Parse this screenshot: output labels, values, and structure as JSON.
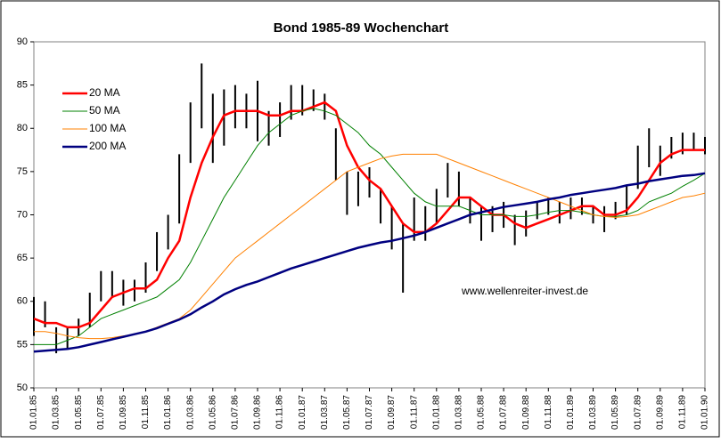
{
  "chart_data": {
    "type": "line",
    "title": "Bond 1985-89 Wochenchart",
    "annotation": "www.wellenreiter-invest.de",
    "categories": [
      "01.01.85",
      null,
      "01.03.85",
      null,
      "01.05.85",
      null,
      "01.07.85",
      null,
      "01.09.85",
      null,
      "01.11.85",
      null,
      "01.01.86",
      null,
      "01.03.86",
      null,
      "01.05.86",
      null,
      "01.07.86",
      null,
      "01.09.86",
      null,
      "01.11.86",
      null,
      "01.01.87",
      null,
      "01.03.87",
      null,
      "01.05.87",
      null,
      "01.07.87",
      null,
      "01.09.87",
      null,
      "01.11.87",
      null,
      "01.01.88",
      null,
      "01.03.88",
      null,
      "01.05.88",
      null,
      "01.07.88",
      null,
      "01.09.88",
      null,
      "01.11.88",
      null,
      "01.01.89",
      null,
      "01.03.89",
      null,
      "01.05.89",
      null,
      "01.07.89",
      null,
      "01.09.89",
      null,
      "01.11.89",
      null,
      "01.01.90"
    ],
    "high": [
      60.5,
      60,
      57,
      57,
      58,
      61,
      63.5,
      63.5,
      62.5,
      62.5,
      64.5,
      68,
      70,
      77,
      83,
      87.5,
      84,
      84.5,
      85,
      84,
      85.5,
      82,
      83,
      85,
      85,
      84.5,
      84,
      80,
      75,
      75,
      75.5,
      73,
      71,
      69,
      72,
      71,
      73,
      76,
      75,
      72,
      71,
      71,
      71.5,
      70,
      70.5,
      71.5,
      72,
      71.5,
      72,
      72,
      71,
      71,
      71.5,
      73.5,
      78,
      80,
      78,
      79,
      79.5,
      79.5,
      79
    ],
    "low": [
      56,
      57,
      54,
      54.5,
      56,
      57,
      60,
      60.5,
      59.5,
      60,
      61,
      63.5,
      66,
      69,
      76,
      80,
      76,
      78,
      80,
      80,
      78.5,
      78,
      79,
      81,
      81.5,
      82,
      81,
      74,
      70,
      71,
      72,
      69,
      66,
      61,
      67,
      67,
      69,
      72,
      71,
      69,
      67,
      68,
      68.5,
      66.5,
      67.5,
      69.5,
      70,
      69,
      69.5,
      70,
      69,
      68,
      69.5,
      70,
      73,
      75.5,
      74.5,
      76.5,
      77,
      77.5,
      77
    ],
    "price_color": "#000000",
    "series": [
      {
        "name": "20 MA",
        "color": "#ff0000",
        "width": 2.5,
        "values": [
          58,
          57.5,
          57.5,
          57,
          57,
          57.5,
          59,
          60.5,
          61,
          61.5,
          61.5,
          62.5,
          65,
          67,
          72,
          76,
          79,
          81.5,
          82,
          82,
          82,
          81.5,
          81.5,
          82,
          82,
          82.5,
          83,
          82,
          78,
          75.5,
          74,
          73,
          71,
          69,
          68,
          68,
          69,
          70.5,
          72,
          72,
          71,
          70,
          70,
          69,
          68.5,
          69,
          69.5,
          70,
          70.5,
          71,
          71,
          70,
          70,
          70.5,
          72,
          74,
          76,
          77,
          77.5,
          77.5,
          77.5
        ]
      },
      {
        "name": "50 MA",
        "color": "#008000",
        "width": 1,
        "values": [
          55,
          55,
          55,
          55.5,
          56,
          57,
          58,
          58.5,
          59,
          59.5,
          60,
          60.5,
          61.5,
          62.5,
          64.5,
          67,
          69.5,
          72,
          74,
          76,
          78,
          79.5,
          80.5,
          81.5,
          82,
          82.3,
          82,
          81.5,
          80.5,
          79.5,
          78,
          77,
          75.5,
          74,
          72.5,
          71.5,
          71,
          71,
          71,
          70.5,
          70,
          70,
          70,
          69.8,
          69.8,
          70,
          70.3,
          70.5,
          70.5,
          70.3,
          70,
          69.8,
          69.8,
          70,
          70.5,
          71.5,
          72,
          72.5,
          73.3,
          74,
          74.8
        ]
      },
      {
        "name": "100 MA",
        "color": "#ff8000",
        "width": 1,
        "values": [
          56.5,
          56.5,
          56.3,
          56,
          55.8,
          55.7,
          55.7,
          55.8,
          56,
          56.2,
          56.5,
          57,
          57.5,
          58,
          59,
          60.5,
          62,
          63.5,
          65,
          66,
          67,
          68,
          69,
          70,
          71,
          72,
          73,
          74,
          75,
          75.5,
          76,
          76.5,
          76.8,
          77,
          77,
          77,
          77,
          76.5,
          76,
          75.5,
          75,
          74.5,
          74,
          73.5,
          73,
          72.5,
          72,
          71.5,
          71,
          70.5,
          70,
          69.8,
          69.7,
          69.8,
          70,
          70.5,
          71,
          71.5,
          72,
          72.2,
          72.5
        ]
      },
      {
        "name": "200 MA",
        "color": "#000080",
        "width": 2.5,
        "values": [
          54.2,
          54.3,
          54.4,
          54.5,
          54.7,
          55,
          55.3,
          55.6,
          55.9,
          56.2,
          56.5,
          56.9,
          57.4,
          57.9,
          58.5,
          59.3,
          60,
          60.8,
          61.4,
          61.9,
          62.3,
          62.8,
          63.3,
          63.8,
          64.2,
          64.6,
          65,
          65.4,
          65.8,
          66.2,
          66.5,
          66.8,
          67,
          67.3,
          67.6,
          68,
          68.5,
          69,
          69.5,
          70,
          70.3,
          70.6,
          70.9,
          71.1,
          71.3,
          71.5,
          71.8,
          72,
          72.3,
          72.5,
          72.7,
          72.9,
          73.1,
          73.4,
          73.6,
          73.9,
          74.1,
          74.3,
          74.5,
          74.6,
          74.8
        ]
      }
    ],
    "ylim": [
      50,
      90
    ],
    "yticks": [
      50,
      55,
      60,
      65,
      70,
      75,
      80,
      85,
      90
    ],
    "grid": false,
    "legend": "upper left"
  }
}
